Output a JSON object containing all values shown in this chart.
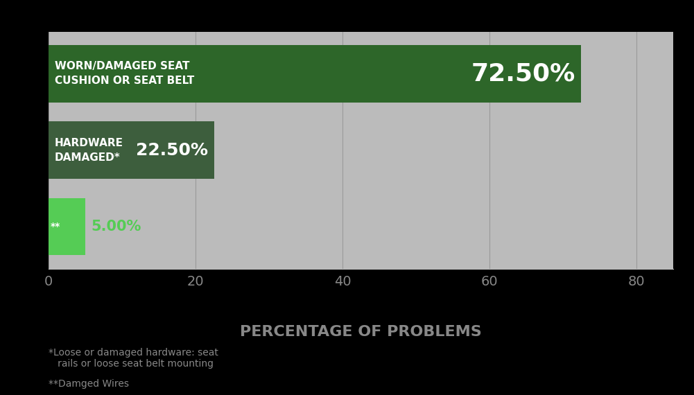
{
  "categories": [
    "**",
    "HARDWARE\nDAMAGED*",
    "WORN/DAMAGED SEAT\nCUSHION OR SEAT BELT"
  ],
  "values": [
    5.0,
    22.5,
    72.5
  ],
  "bar_colors": [
    "#55cc55",
    "#3d5e3d",
    "#2d6629"
  ],
  "value_labels": [
    "5.00%",
    "22.50%",
    "72.50%"
  ],
  "value_label_colors": [
    "#55cc55",
    "#ffffff",
    "#ffffff"
  ],
  "value_label_sizes": [
    15,
    18,
    26
  ],
  "cat_label_colors": [
    "#ffffff",
    "#ffffff",
    "#ffffff"
  ],
  "plot_bg_color": "#bbbbbb",
  "fig_bg_color": "#000000",
  "xlabel": "PERCENTAGE OF PROBLEMS",
  "xlabel_fontsize": 16,
  "xlabel_color": "#888888",
  "xlim": [
    0,
    85
  ],
  "xticks": [
    0,
    20,
    40,
    60,
    80
  ],
  "xtick_color": "#888888",
  "xtick_fontsize": 14,
  "grid_color": "#999999",
  "footnote1": "*Loose or damaged hardware: seat\n   rails or loose seat belt mounting",
  "footnote2": "**Damged Wires",
  "footnote_color": "#888888",
  "footnote_fontsize": 10,
  "bar_height": 0.75,
  "cat_label_fontsize": 11,
  "small_cat_fontsize": 10
}
